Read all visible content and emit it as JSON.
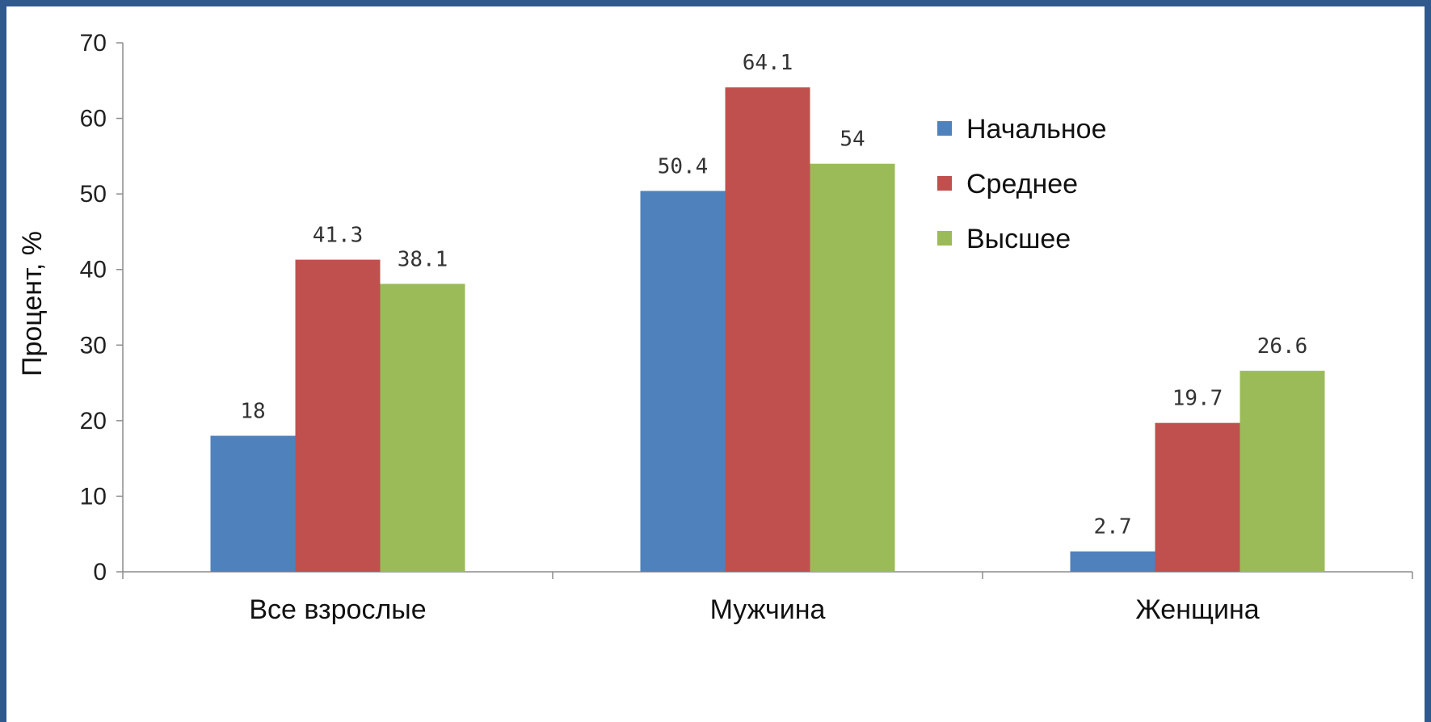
{
  "chart_data": {
    "type": "bar",
    "categories": [
      "Все взрослые",
      "Мужчина",
      "Женщина"
    ],
    "series": [
      {
        "name": "Начальное",
        "values": [
          18,
          50.4,
          2.7
        ],
        "labels": [
          "18",
          "50.4",
          "2.7"
        ],
        "color": "#4f81bd"
      },
      {
        "name": "Среднее",
        "values": [
          41.3,
          64.1,
          19.7
        ],
        "labels": [
          "41.3",
          "64.1",
          "19.7"
        ],
        "color": "#c0504d"
      },
      {
        "name": "Высшее",
        "values": [
          38.1,
          54,
          26.6
        ],
        "labels": [
          "38.1",
          "54",
          "26.6"
        ],
        "color": "#9bbb59"
      }
    ],
    "ylabel": "Процент, %",
    "xlabel": "",
    "title": "",
    "ylim": [
      0,
      70
    ],
    "yticks": [
      0,
      10,
      20,
      30,
      40,
      50,
      60,
      70
    ],
    "grid": false,
    "legend_position": "right"
  }
}
